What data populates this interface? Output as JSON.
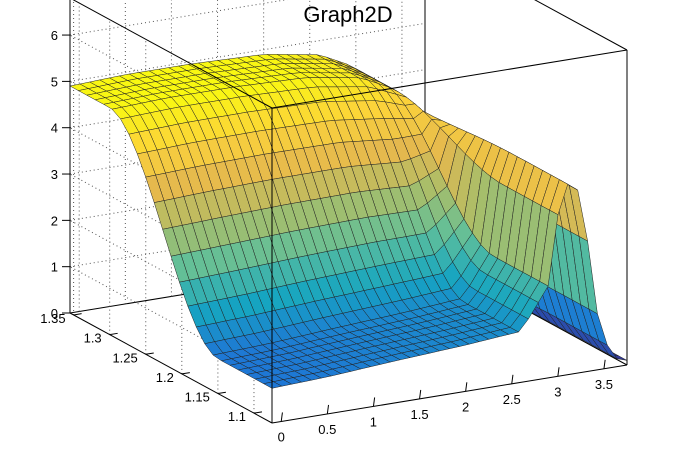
{
  "chart_data": {
    "type": "surface",
    "title": "Graph2D",
    "colormap": [
      "#352a87",
      "#1f74d6",
      "#16a5c1",
      "#5fbf9a",
      "#a6be6b",
      "#e4b84e",
      "#fcd33a",
      "#f9fb0e"
    ],
    "x_axis": {
      "ticks": [
        0,
        0.5,
        1,
        1.5,
        2,
        2.5,
        3,
        3.5
      ],
      "tick_labels": [
        "0",
        "0.5",
        "1",
        "1.5",
        "2",
        "2.5",
        "3",
        "3.5"
      ],
      "range": [
        -0.1,
        3.75
      ]
    },
    "y_axis": {
      "ticks": [
        1.1,
        1.15,
        1.2,
        1.25,
        1.3,
        1.35
      ],
      "tick_labels": [
        "1.1",
        "1.15",
        "1.2",
        "1.25",
        "1.3",
        "1.35"
      ],
      "range": [
        1.075,
        1.355
      ]
    },
    "z_axis": {
      "ticks": [
        0,
        1,
        2,
        3,
        4,
        5,
        6
      ],
      "tick_labels": [
        "0",
        "1",
        "2",
        "3",
        "4",
        "5",
        "6"
      ],
      "range": [
        0,
        6.8
      ]
    },
    "grid": true,
    "surface_profile": {
      "x": [
        -0.1,
        0.5,
        1.2,
        2.0,
        2.6,
        2.9,
        3.05,
        3.25,
        3.45,
        3.6,
        3.75
      ],
      "z_low_y": [
        0.75,
        0.8,
        0.9,
        1.0,
        1.1,
        2.0,
        4.2,
        3.9,
        0.9,
        0.2,
        0.1
      ],
      "z_high_y": [
        4.9,
        4.95,
        4.95,
        4.9,
        4.7,
        4.4,
        4.2,
        3.4,
        0.7,
        0.15,
        0.1
      ],
      "plateau_y": 1.15,
      "high_y_boundary": 1.3
    }
  }
}
